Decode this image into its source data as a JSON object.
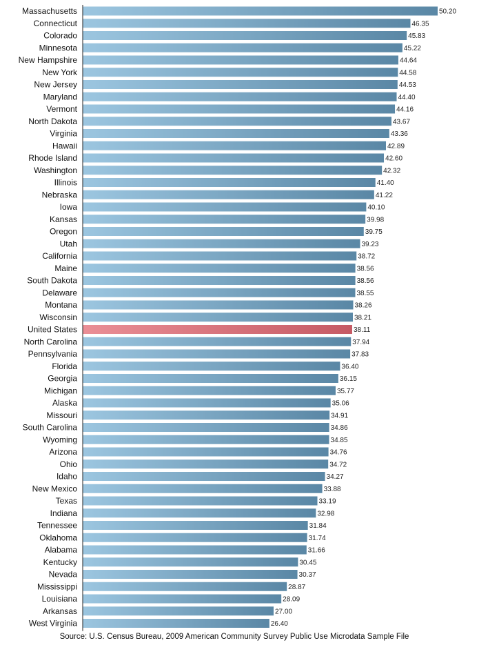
{
  "chart_data": {
    "type": "bar",
    "orientation": "horizontal",
    "title": "",
    "xlabel": "",
    "ylabel": "",
    "xlim": [
      0,
      50.2
    ],
    "grid": false,
    "legend": "none",
    "bar_color": "#6f9ab7",
    "bar_color_light": "#9cc6e0",
    "bar_color_dark": "#5a87a5",
    "highlight_category": "United States",
    "highlight_color": "#c65a64",
    "highlight_color_light": "#ea8f96",
    "categories": [
      "Massachusetts",
      "Connecticut",
      "Colorado",
      "Minnesota",
      "New Hampshire",
      "New York",
      "New Jersey",
      "Maryland",
      "Vermont",
      "North Dakota",
      "Virginia",
      "Hawaii",
      "Rhode Island",
      "Washington",
      "Illinois",
      "Nebraska",
      "Iowa",
      "Kansas",
      "Oregon",
      "Utah",
      "California",
      "Maine",
      "South Dakota",
      "Delaware",
      "Montana",
      "Wisconsin",
      "United States",
      "North Carolina",
      "Pennsylvania",
      "Florida",
      "Georgia",
      "Michigan",
      "Alaska",
      "Missouri",
      "South Carolina",
      "Wyoming",
      "Arizona",
      "Ohio",
      "Idaho",
      "New Mexico",
      "Texas",
      "Indiana",
      "Tennessee",
      "Oklahoma",
      "Alabama",
      "Kentucky",
      "Nevada",
      "Mississippi",
      "Louisiana",
      "Arkansas",
      "West Virginia"
    ],
    "values": [
      50.2,
      46.35,
      45.83,
      45.22,
      44.64,
      44.58,
      44.53,
      44.4,
      44.16,
      43.67,
      43.36,
      42.89,
      42.6,
      42.32,
      41.4,
      41.22,
      40.1,
      39.98,
      39.75,
      39.23,
      38.72,
      38.56,
      38.56,
      38.55,
      38.26,
      38.21,
      38.11,
      37.94,
      37.83,
      36.4,
      36.15,
      35.77,
      35.06,
      34.91,
      34.86,
      34.85,
      34.76,
      34.72,
      34.27,
      33.88,
      33.19,
      32.98,
      31.84,
      31.74,
      31.66,
      30.45,
      30.37,
      28.87,
      28.09,
      27.0,
      26.4
    ],
    "value_labels": [
      "50.20",
      "46.35",
      "45.83",
      "45.22",
      "44.64",
      "44.58",
      "44.53",
      "44.40",
      "44.16",
      "43.67",
      "43.36",
      "42.89",
      "42.60",
      "42.32",
      "41.40",
      "41.22",
      "40.10",
      "39.98",
      "39.75",
      "39.23",
      "38.72",
      "38.56",
      "38.56",
      "38.55",
      "38.26",
      "38.21",
      "38.11",
      "37.94",
      "37.83",
      "36.40",
      "36.15",
      "35.77",
      "35.06",
      "34.91",
      "34.86",
      "34.85",
      "34.76",
      "34.72",
      "34.27",
      "33.88",
      "33.19",
      "32.98",
      "31.84",
      "31.74",
      "31.66",
      "30.45",
      "30.37",
      "28.87",
      "28.09",
      "27.00",
      "26.40"
    ]
  },
  "footer": {
    "source": "Source: U.S. Census Bureau, 2009 American Community Survey Public Use Microdata Sample File"
  }
}
